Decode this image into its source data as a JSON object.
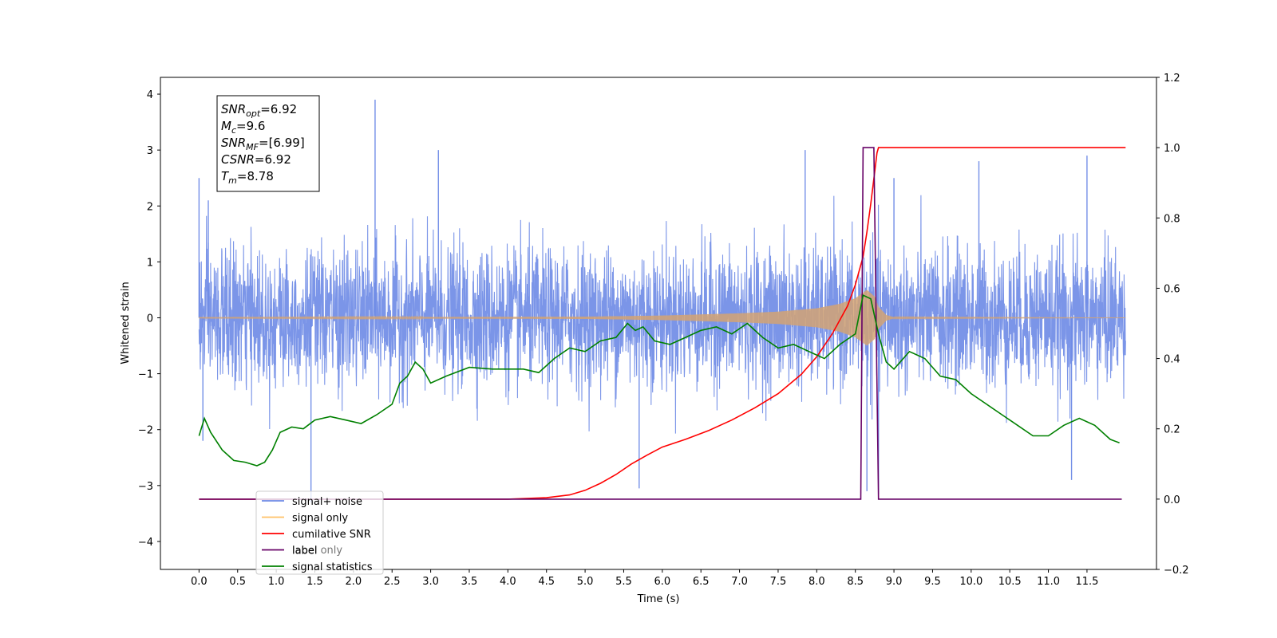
{
  "chart_data": {
    "type": "line",
    "xlabel": "Time (s)",
    "ylabel": "Whitened strain",
    "xlim": [
      -0.5,
      12.4
    ],
    "ylim": [
      -4.5,
      4.3
    ],
    "y2lim": [
      -0.2,
      1.2
    ],
    "x_ticks": [
      0.0,
      0.5,
      1.0,
      1.5,
      2.0,
      2.5,
      3.0,
      3.5,
      4.0,
      4.5,
      5.0,
      5.5,
      6.0,
      6.5,
      7.0,
      7.5,
      8.0,
      8.5,
      9.0,
      9.5,
      10.0,
      10.5,
      11.0,
      11.5
    ],
    "x_tick_labels": [
      "0.0",
      "0.5",
      "1.0",
      "1.5",
      "2.0",
      "2.5",
      "3.0",
      "3.5",
      "4.0",
      "4.5",
      "5.0",
      "5.5",
      "6.0",
      "6.5",
      "7.0",
      "7.5",
      "8.0",
      "8.5",
      "9.0",
      "9.5",
      "10.0",
      "10.5",
      "11.0",
      "11.5"
    ],
    "y_ticks": [
      4,
      3,
      2,
      1,
      0,
      -1,
      -2,
      -3,
      -4
    ],
    "y_tick_labels": [
      "4",
      "3",
      "2",
      "1",
      "0",
      "−1",
      "−2",
      "−3",
      "−4"
    ],
    "y2_ticks": [
      1.2,
      1.0,
      0.8,
      0.6,
      0.4,
      0.2,
      0.0,
      -0.2
    ],
    "y2_tick_labels": [
      "1.2",
      "1.0",
      "0.8",
      "0.6",
      "0.4",
      "0.2",
      "0.0",
      "−0.2"
    ],
    "legend_placement": "lower-left",
    "legend": [
      {
        "label": "signal+ noise",
        "color": "#6d8ae6"
      },
      {
        "label": "signal only",
        "color": "#ffc266"
      },
      {
        "label": "cumilative SNR",
        "color": "#ff0000"
      },
      {
        "label": "label",
        "color": "#660066"
      },
      {
        "label": "signal statistics",
        "color": "#008000"
      }
    ],
    "hidden_legend_text": [
      "label only"
    ],
    "annotation": [
      {
        "main": "SNR",
        "sub": "opt",
        "rest": "=6.92"
      },
      {
        "main": "M",
        "sub": "c",
        "rest": "=9.6"
      },
      {
        "main": "SNR",
        "sub": "MF",
        "rest": "=[6.99]"
      },
      {
        "main": "CSNR",
        "sub": "",
        "rest": "=6.92"
      },
      {
        "main": "T",
        "sub": "m",
        "rest": "=8.78"
      }
    ],
    "series": [
      {
        "name": "signal+ noise",
        "axis": "left",
        "color": "#6d8ae6",
        "x_range": [
          0.0,
          12.0
        ],
        "noise_amplitude": 0.85,
        "spikes": [
          [
            0.0,
            2.5
          ],
          [
            0.05,
            -2.2
          ],
          [
            0.12,
            2.1
          ],
          [
            2.28,
            3.9
          ],
          [
            1.45,
            -3.3
          ],
          [
            3.1,
            3.0
          ],
          [
            5.7,
            -3.05
          ],
          [
            7.85,
            3.0
          ],
          [
            8.65,
            -3.1
          ],
          [
            8.8,
            -3.15
          ],
          [
            9.0,
            2.5
          ],
          [
            10.1,
            2.8
          ],
          [
            11.3,
            -2.9
          ],
          [
            11.5,
            2.9
          ]
        ]
      },
      {
        "name": "signal only",
        "axis": "left",
        "color": "#d4a373",
        "x_range": [
          0.0,
          12.0
        ],
        "envelope": [
          [
            0.0,
            0.005
          ],
          [
            5.0,
            0.02
          ],
          [
            6.0,
            0.04
          ],
          [
            7.0,
            0.08
          ],
          [
            7.5,
            0.11
          ],
          [
            8.0,
            0.17
          ],
          [
            8.3,
            0.25
          ],
          [
            8.5,
            0.35
          ],
          [
            8.6,
            0.45
          ],
          [
            8.65,
            0.5
          ],
          [
            8.75,
            0.38
          ],
          [
            8.8,
            0.2
          ],
          [
            8.9,
            0.05
          ],
          [
            9.0,
            0.01
          ],
          [
            12.0,
            0.0
          ]
        ]
      },
      {
        "name": "cumilative SNR",
        "axis": "right",
        "color": "#ff0000",
        "x": [
          0.0,
          4.0,
          4.5,
          4.8,
          5.0,
          5.2,
          5.4,
          5.6,
          5.8,
          6.0,
          6.3,
          6.6,
          6.9,
          7.2,
          7.5,
          7.8,
          8.0,
          8.2,
          8.4,
          8.5,
          8.6,
          8.65,
          8.7,
          8.75,
          8.78,
          8.8,
          12.0
        ],
        "y": [
          0.0,
          0.0,
          0.004,
          0.012,
          0.025,
          0.045,
          0.07,
          0.1,
          0.125,
          0.148,
          0.17,
          0.195,
          0.225,
          0.26,
          0.3,
          0.355,
          0.405,
          0.47,
          0.55,
          0.61,
          0.69,
          0.76,
          0.84,
          0.93,
          0.985,
          1.0,
          1.0
        ]
      },
      {
        "name": "label",
        "axis": "right",
        "color": "#660066",
        "x": [
          0.0,
          8.57,
          8.6,
          8.74,
          8.8,
          11.95
        ],
        "y": [
          0.0,
          0.0,
          1.0,
          1.0,
          0.0,
          0.0
        ]
      },
      {
        "name": "signal statistics",
        "axis": "right",
        "color": "#008000",
        "x": [
          0.0,
          0.07,
          0.15,
          0.3,
          0.45,
          0.6,
          0.75,
          0.85,
          0.95,
          1.05,
          1.2,
          1.35,
          1.5,
          1.7,
          1.9,
          2.1,
          2.3,
          2.5,
          2.6,
          2.7,
          2.8,
          2.9,
          3.0,
          3.2,
          3.5,
          3.8,
          4.0,
          4.2,
          4.4,
          4.6,
          4.8,
          5.0,
          5.2,
          5.4,
          5.55,
          5.65,
          5.75,
          5.9,
          6.1,
          6.3,
          6.5,
          6.7,
          6.9,
          7.1,
          7.3,
          7.5,
          7.7,
          7.9,
          8.1,
          8.3,
          8.5,
          8.6,
          8.7,
          8.8,
          8.9,
          9.0,
          9.2,
          9.4,
          9.6,
          9.8,
          10.0,
          10.2,
          10.4,
          10.6,
          10.8,
          11.0,
          11.2,
          11.4,
          11.6,
          11.8,
          11.92
        ],
        "y": [
          0.18,
          0.23,
          0.19,
          0.14,
          0.11,
          0.105,
          0.095,
          0.105,
          0.14,
          0.19,
          0.205,
          0.2,
          0.225,
          0.235,
          0.225,
          0.215,
          0.24,
          0.27,
          0.33,
          0.35,
          0.39,
          0.37,
          0.33,
          0.35,
          0.375,
          0.37,
          0.37,
          0.37,
          0.36,
          0.4,
          0.43,
          0.42,
          0.45,
          0.46,
          0.5,
          0.48,
          0.49,
          0.45,
          0.44,
          0.46,
          0.48,
          0.49,
          0.47,
          0.5,
          0.46,
          0.43,
          0.44,
          0.42,
          0.4,
          0.44,
          0.47,
          0.58,
          0.57,
          0.47,
          0.39,
          0.37,
          0.42,
          0.4,
          0.35,
          0.34,
          0.3,
          0.27,
          0.24,
          0.21,
          0.18,
          0.18,
          0.21,
          0.23,
          0.21,
          0.17,
          0.16
        ]
      }
    ]
  }
}
